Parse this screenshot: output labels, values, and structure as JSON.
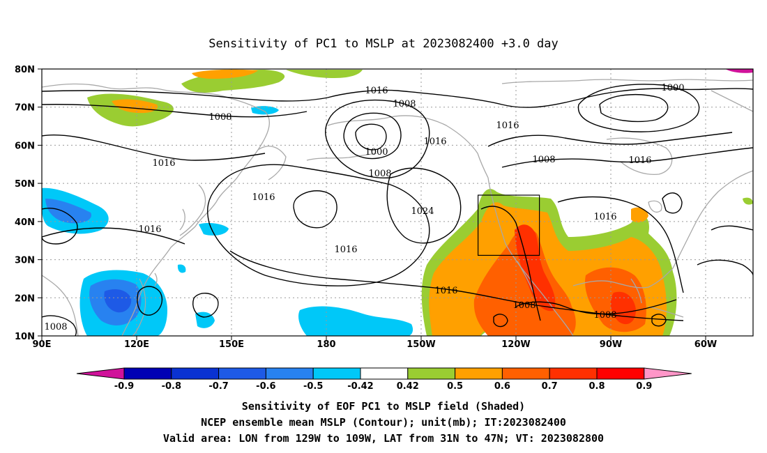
{
  "title": "Sensitivity of PC1 to MSLP at 2023082400 +3.0 day",
  "axes": {
    "lon_ticks": [
      "90E",
      "120E",
      "150E",
      "180",
      "150W",
      "120W",
      "90W",
      "60W"
    ],
    "lat_ticks": [
      "80N",
      "70N",
      "60N",
      "50N",
      "40N",
      "30N",
      "20N",
      "10N"
    ]
  },
  "contour_labels": [
    "1016",
    "1008",
    "1016",
    "1000",
    "1008",
    "1016",
    "1008",
    "1016",
    "1016",
    "1016",
    "1024",
    "1016",
    "1016",
    "1008",
    "1008",
    "1008",
    "1008",
    "1000"
  ],
  "valid_box": {
    "lon_min": -129,
    "lon_max": -109,
    "lat_min": 31,
    "lat_max": 47
  },
  "colorbar": {
    "labels": [
      "-0.9",
      "-0.8",
      "-0.7",
      "-0.6",
      "-0.5",
      "-0.42",
      "0.42",
      "0.5",
      "0.6",
      "0.7",
      "0.8",
      "0.9"
    ],
    "colors": [
      "#d0129a",
      "#0000b4",
      "#0a32d2",
      "#1e5ae6",
      "#2882f0",
      "#00c8f8",
      "#ffffff",
      "#9acd32",
      "#ffa000",
      "#ff6000",
      "#ff3000",
      "#ff0000",
      "#ff96c8"
    ]
  },
  "captions": [
    "Sensitivity of EOF PC1 to MSLP field (Shaded)",
    "NCEP ensemble mean MSLP (Contour); unit(mb); IT:2023082400",
    "Valid area: LON from 129W to 109W, LAT from 31N to 47N; VT: 2023082800"
  ]
}
